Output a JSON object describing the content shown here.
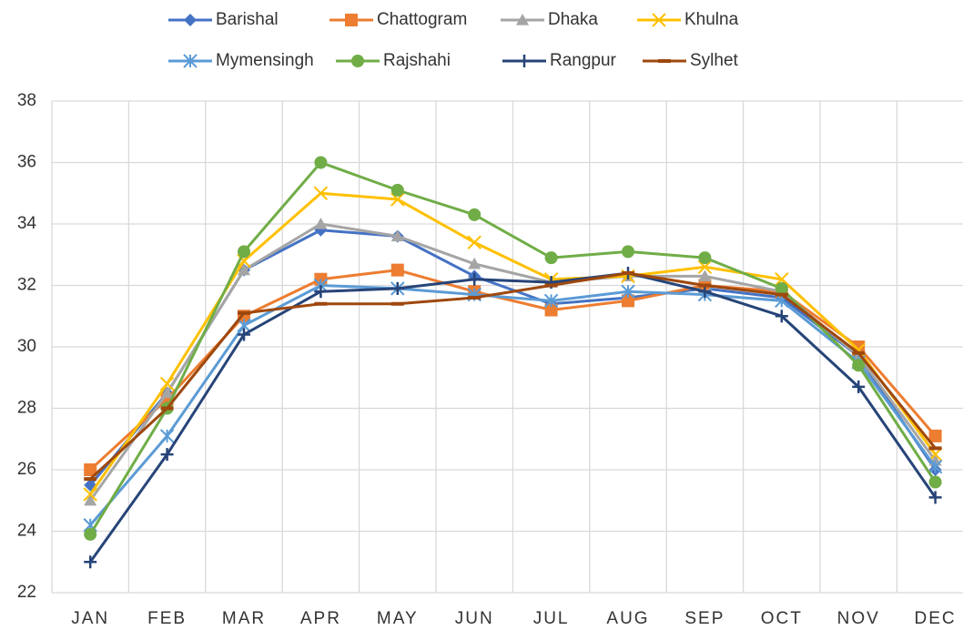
{
  "chart_data": {
    "type": "line",
    "categories": [
      "JAN",
      "FEB",
      "MAR",
      "APR",
      "MAY",
      "JUN",
      "JUL",
      "AUG",
      "SEP",
      "OCT",
      "NOV",
      "DEC"
    ],
    "ylim": [
      22,
      38
    ],
    "yticks": [
      22,
      24,
      26,
      28,
      30,
      32,
      34,
      36,
      38
    ],
    "grid": true,
    "legend": "top",
    "series": [
      {
        "name": "Barishal",
        "color": "#4472c4",
        "marker": "diamond",
        "values": [
          25.5,
          28.5,
          32.5,
          33.8,
          33.6,
          32.3,
          31.4,
          31.6,
          31.9,
          31.6,
          29.7,
          26.0
        ]
      },
      {
        "name": "Chattogram",
        "color": "#ed7d31",
        "marker": "square",
        "values": [
          26.0,
          28.3,
          31.0,
          32.2,
          32.5,
          31.8,
          31.2,
          31.5,
          32.0,
          31.8,
          30.0,
          27.1
        ]
      },
      {
        "name": "Dhaka",
        "color": "#a5a5a5",
        "marker": "triangle",
        "values": [
          25.0,
          28.5,
          32.5,
          34.0,
          33.6,
          32.7,
          32.1,
          32.3,
          32.3,
          31.8,
          29.7,
          26.3
        ]
      },
      {
        "name": "Khulna",
        "color": "#ffc000",
        "marker": "x",
        "values": [
          25.2,
          28.8,
          32.8,
          35.0,
          34.8,
          33.4,
          32.2,
          32.3,
          32.6,
          32.2,
          29.9,
          26.5
        ]
      },
      {
        "name": "Mymensingh",
        "color": "#5b9bd5",
        "marker": "star",
        "values": [
          24.2,
          27.1,
          30.7,
          32.0,
          31.9,
          31.7,
          31.5,
          31.8,
          31.7,
          31.5,
          29.5,
          26.1
        ]
      },
      {
        "name": "Rajshahi",
        "color": "#70ad47",
        "marker": "circle",
        "values": [
          23.9,
          28.0,
          33.1,
          36.0,
          35.1,
          34.3,
          32.9,
          33.1,
          32.9,
          31.9,
          29.4,
          25.6
        ]
      },
      {
        "name": "Rangpur",
        "color": "#264478",
        "marker": "plus",
        "values": [
          23.0,
          26.5,
          30.4,
          31.8,
          31.9,
          32.2,
          32.1,
          32.4,
          31.8,
          31.0,
          28.7,
          25.1
        ]
      },
      {
        "name": "Sylhet",
        "color": "#9e480e",
        "marker": "dash",
        "values": [
          25.7,
          28.0,
          31.1,
          31.4,
          31.4,
          31.6,
          32.0,
          32.4,
          32.0,
          31.7,
          29.8,
          26.7
        ]
      }
    ]
  }
}
